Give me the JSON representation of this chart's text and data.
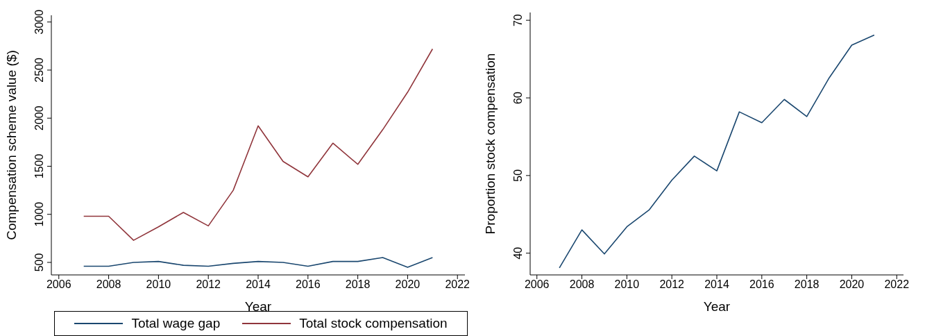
{
  "chart_data": [
    {
      "type": "line",
      "xlabel": "Year",
      "ylabel": "Compensation scheme value ($)",
      "x": [
        2007,
        2008,
        2009,
        2010,
        2011,
        2012,
        2013,
        2014,
        2015,
        2016,
        2017,
        2018,
        2019,
        2020,
        2021
      ],
      "series": [
        {
          "name": "Total wage gap",
          "color": "#1a476f",
          "values": [
            460,
            460,
            500,
            510,
            470,
            460,
            490,
            510,
            500,
            460,
            510,
            510,
            550,
            450,
            550
          ]
        },
        {
          "name": "Total stock compensation",
          "color": "#90353b",
          "values": [
            980,
            980,
            730,
            870,
            1020,
            880,
            1250,
            1920,
            1550,
            1390,
            1740,
            1520,
            1880,
            2270,
            2720
          ]
        }
      ],
      "xlim": [
        2005.7,
        2022.3
      ],
      "xticks": [
        2006,
        2008,
        2010,
        2012,
        2014,
        2016,
        2018,
        2020,
        2022
      ],
      "ylim": [
        370,
        3070
      ],
      "yticks": [
        500,
        1000,
        1500,
        2000,
        2500,
        3000
      ],
      "grid": false,
      "legend": "bottom",
      "marker": "none",
      "line_style": "solid"
    },
    {
      "type": "line",
      "xlabel": "Year",
      "ylabel": "Proportion stock compensation",
      "x": [
        2007,
        2008,
        2009,
        2010,
        2011,
        2012,
        2013,
        2014,
        2015,
        2016,
        2017,
        2018,
        2019,
        2020,
        2021
      ],
      "series": [
        {
          "color": "#1a476f",
          "values": [
            38.1,
            43.0,
            39.9,
            43.4,
            45.6,
            49.4,
            52.5,
            50.6,
            58.2,
            56.8,
            59.8,
            57.6,
            62.6,
            66.8,
            68.1
          ]
        }
      ],
      "xlim": [
        2005.7,
        2022.3
      ],
      "xticks": [
        2006,
        2008,
        2010,
        2012,
        2014,
        2016,
        2018,
        2020,
        2022
      ],
      "ylim": [
        37.2,
        71
      ],
      "yticks": [
        40,
        50,
        60,
        70
      ],
      "grid": false,
      "legend": false,
      "marker": "none",
      "line_style": "solid"
    }
  ]
}
